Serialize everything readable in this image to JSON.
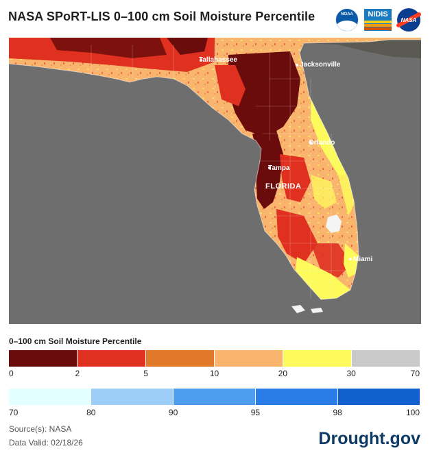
{
  "title": "NASA SPoRT-LIS 0–100 cm Soil Moisture Percentile",
  "logos": [
    {
      "name": "noaa-logo",
      "text": "NOAA",
      "color": "#0b5aa8"
    },
    {
      "name": "nidis-logo",
      "text": "NIDIS",
      "color": "#1b7bc0"
    },
    {
      "name": "nasa-logo",
      "text": "NASA",
      "color": "#0b3d91"
    }
  ],
  "map": {
    "state_label": "FLORIDA",
    "cities": [
      "Tallahassee",
      "Jacksonville",
      "Orlando",
      "Tampa",
      "Miami"
    ],
    "water_color": "#6e6e6e",
    "neighbor_land_color": "#5a5a52"
  },
  "legend": {
    "title": "0–100 cm Soil Moisture Percentile",
    "dry": {
      "colors": [
        "#6b0c0c",
        "#df3020",
        "#e07a2a",
        "#f9b46e",
        "#fdfa5c",
        "#c9c9c9"
      ],
      "ticks": [
        "0",
        "2",
        "5",
        "10",
        "20",
        "30",
        "70"
      ]
    },
    "wet": {
      "colors": [
        "#e3ffff",
        "#9ccef7",
        "#4d9eee",
        "#2a7de7",
        "#1260cf"
      ],
      "ticks": [
        "70",
        "80",
        "90",
        "95",
        "98",
        "100"
      ]
    }
  },
  "footer": {
    "source": "Source(s): NASA",
    "valid": "Data Valid: 02/18/26",
    "brand": "Drought.gov",
    "brand_color": "#0d3b66"
  }
}
